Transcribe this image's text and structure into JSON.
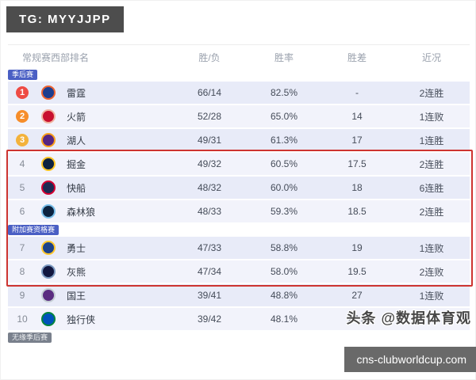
{
  "overlays": {
    "tg_badge": "TG: MYYJJPP",
    "watermark": "头条 @数据体育观",
    "site_badge": "cns-clubworldcup.com"
  },
  "colors": {
    "rank1": "#ee4b44",
    "rank2": "#f68d2a",
    "rank3": "#f3b23b",
    "highlight_box": "#cd3430",
    "section_badge_blue": "#4a5fc4",
    "section_badge_gray": "#79808c"
  },
  "table": {
    "title": "常规赛西部排名",
    "columns": [
      "胜/负",
      "胜率",
      "胜差",
      "近况"
    ],
    "rows": [
      {
        "type": "badge",
        "variant": "blue",
        "label": "季后赛"
      },
      {
        "type": "team",
        "rank": "1",
        "team": "雷霆",
        "wl": "66/14",
        "pct": "82.5%",
        "gb": "-",
        "form": "2连胜",
        "logo_c1": "#1d3e8f",
        "logo_c2": "#ef6330"
      },
      {
        "type": "team",
        "rank": "2",
        "team": "火箭",
        "wl": "52/28",
        "pct": "65.0%",
        "gb": "14",
        "form": "1连败",
        "logo_c1": "#c8102e",
        "logo_c2": "#f0b4a0"
      },
      {
        "type": "team",
        "rank": "3",
        "team": "湖人",
        "wl": "49/31",
        "pct": "61.3%",
        "gb": "17",
        "form": "1连胜",
        "logo_c1": "#552583",
        "logo_c2": "#f9a01b"
      },
      {
        "type": "team",
        "rank": "4",
        "team": "掘金",
        "wl": "49/32",
        "pct": "60.5%",
        "gb": "17.5",
        "form": "2连胜",
        "logo_c1": "#0e2240",
        "logo_c2": "#fec524"
      },
      {
        "type": "team",
        "rank": "5",
        "team": "快船",
        "wl": "48/32",
        "pct": "60.0%",
        "gb": "18",
        "form": "6连胜",
        "logo_c1": "#1d2b53",
        "logo_c2": "#d50032"
      },
      {
        "type": "team",
        "rank": "6",
        "team": "森林狼",
        "wl": "48/33",
        "pct": "59.3%",
        "gb": "18.5",
        "form": "2连胜",
        "logo_c1": "#0c2340",
        "logo_c2": "#78bee9"
      },
      {
        "type": "badge",
        "variant": "blue",
        "label": "附加赛资格赛"
      },
      {
        "type": "team",
        "rank": "7",
        "team": "勇士",
        "wl": "47/33",
        "pct": "58.8%",
        "gb": "19",
        "form": "1连败",
        "logo_c1": "#1d428a",
        "logo_c2": "#ffc72c"
      },
      {
        "type": "team",
        "rank": "8",
        "team": "灰熊",
        "wl": "47/34",
        "pct": "58.0%",
        "gb": "19.5",
        "form": "2连败",
        "logo_c1": "#12173f",
        "logo_c2": "#7d9bc1"
      },
      {
        "type": "team",
        "rank": "9",
        "team": "国王",
        "wl": "39/41",
        "pct": "48.8%",
        "gb": "27",
        "form": "1连败",
        "logo_c1": "#5a2d81",
        "logo_c2": "#c4ced4"
      },
      {
        "type": "team",
        "rank": "10",
        "team": "独行侠",
        "wl": "39/42",
        "pct": "48.1%",
        "gb": "27.5",
        "form": "",
        "logo_c1": "#0053bc",
        "logo_c2": "#00843d"
      },
      {
        "type": "badge",
        "variant": "gray",
        "label": "无缘季后赛"
      }
    ]
  }
}
